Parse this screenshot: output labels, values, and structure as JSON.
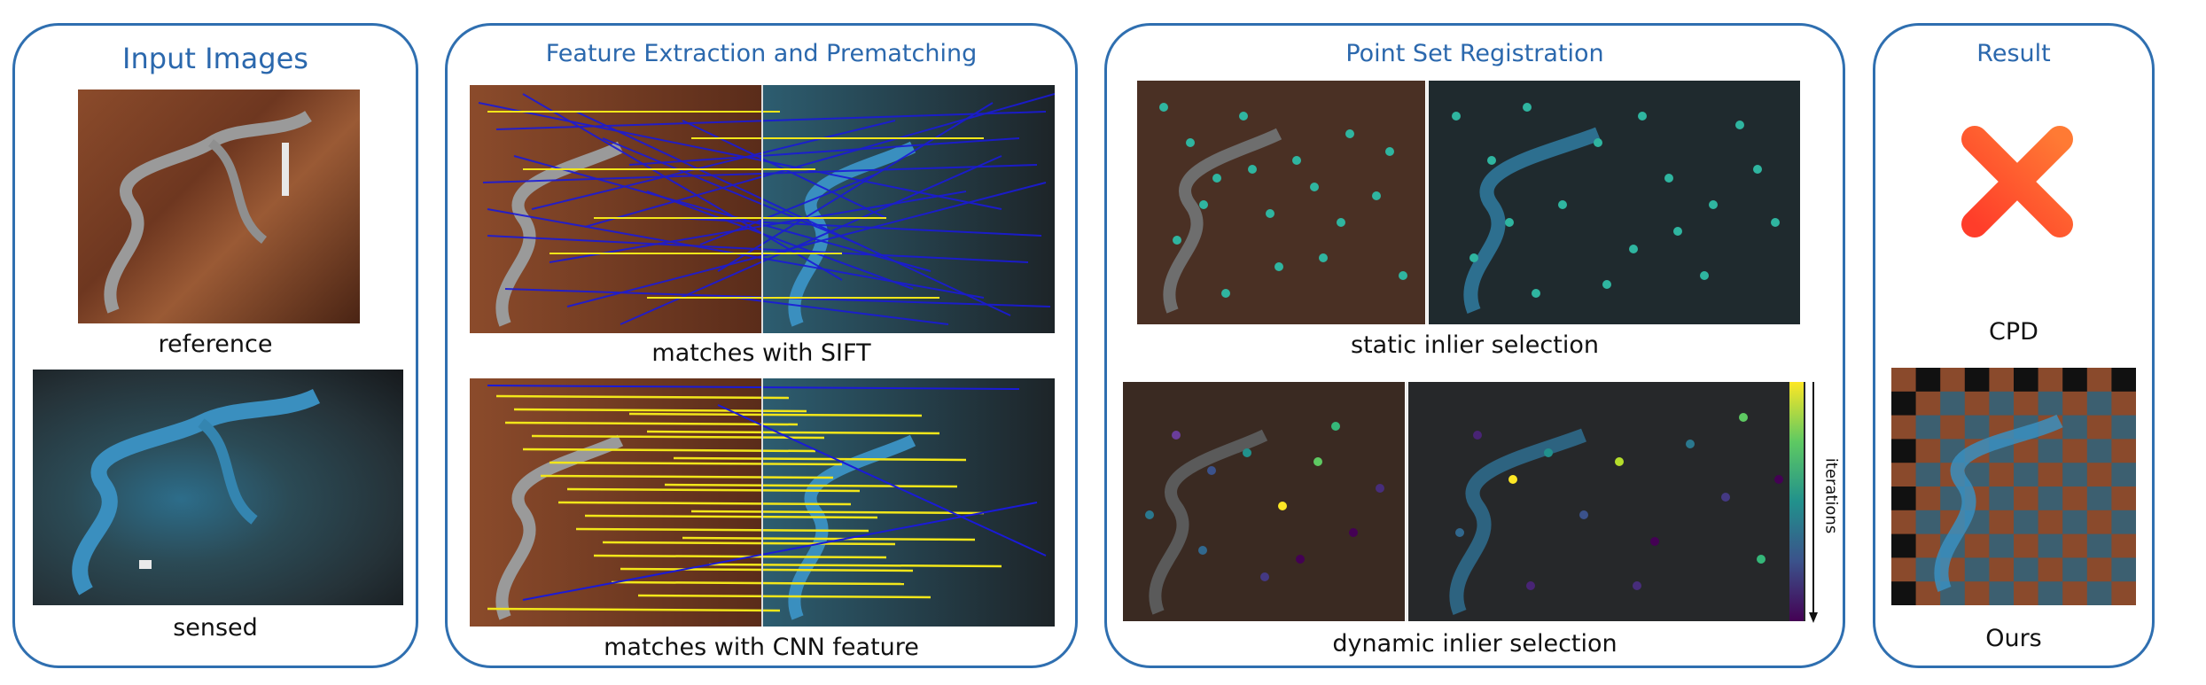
{
  "panels": {
    "input": {
      "title": "Input Images",
      "caption_top": "reference",
      "caption_bottom": "sensed"
    },
    "feature": {
      "title": "Feature Extraction and Prematching",
      "caption_top": "matches with SIFT",
      "caption_bottom": "matches with CNN feature"
    },
    "registration": {
      "title": "Point Set Registration",
      "caption_top": "static inlier selection",
      "caption_bottom": "dynamic inlier selection",
      "colorbar_label": "iterations"
    },
    "result": {
      "title": "Result",
      "caption_top": "CPD",
      "caption_bottom": "Ours"
    }
  },
  "colors": {
    "border": "#2f6fb0",
    "title": "#2b68ad",
    "sift_lines": "#1a1ad8",
    "cnn_lines": "#f2e61a",
    "static_points": "#2fb5a0",
    "cross": "#ff5a2c"
  },
  "icons": [
    "fail-cross-icon",
    "colorbar-arrow-icon"
  ]
}
